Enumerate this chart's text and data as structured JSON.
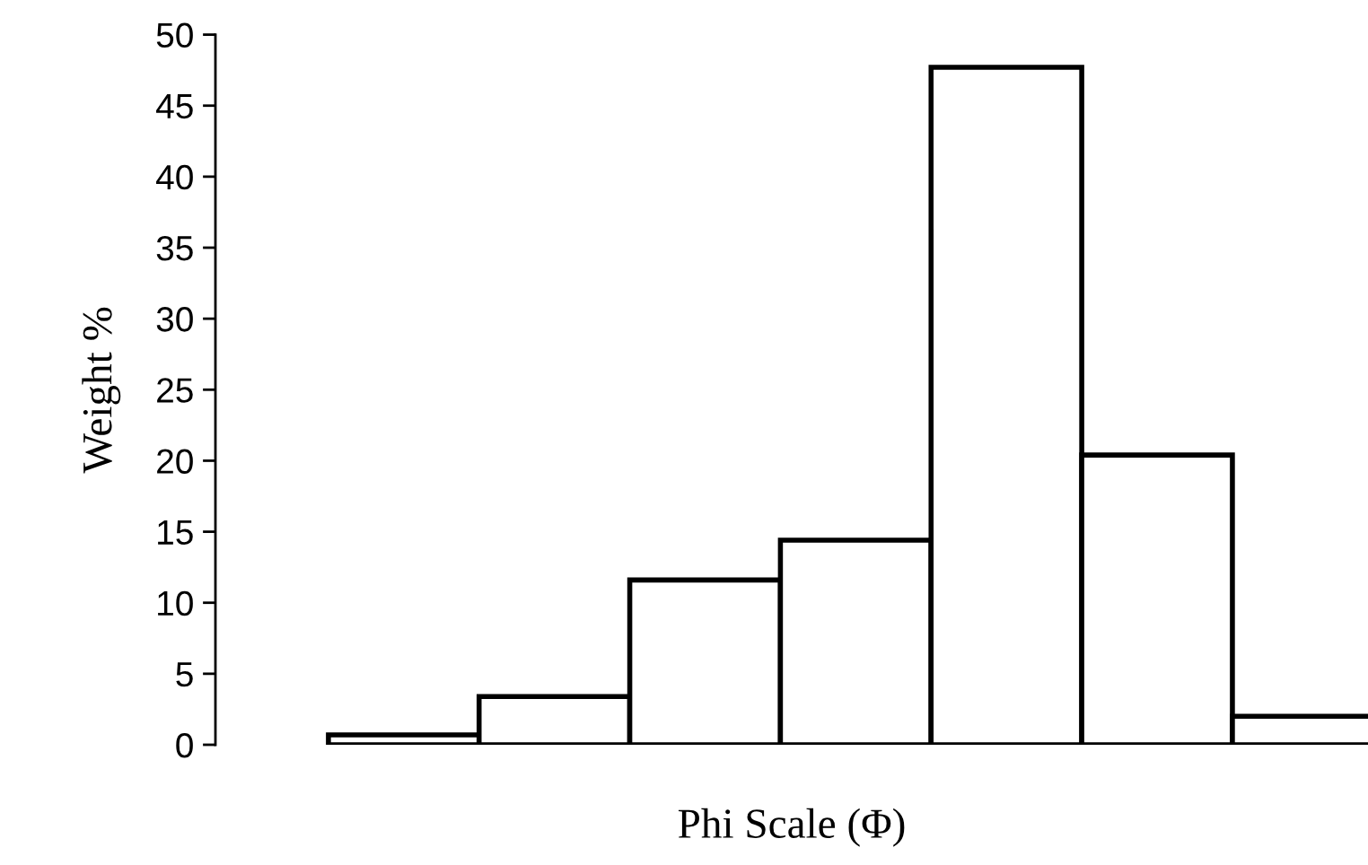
{
  "chart_data": {
    "type": "bar",
    "xlabel": "Phi Scale (Φ)",
    "ylabel": "Weight %",
    "categories": [
      null,
      null,
      null,
      null,
      null,
      null,
      null
    ],
    "values": [
      0.7,
      3.4,
      11.6,
      14.4,
      47.7,
      20.4,
      2.0
    ],
    "color": "#ffffff",
    "ylim": [
      0,
      50
    ],
    "yticks": [
      0,
      5,
      10,
      15,
      20,
      25,
      30,
      35,
      40,
      45,
      50
    ],
    "grid": false,
    "legend": false
  }
}
